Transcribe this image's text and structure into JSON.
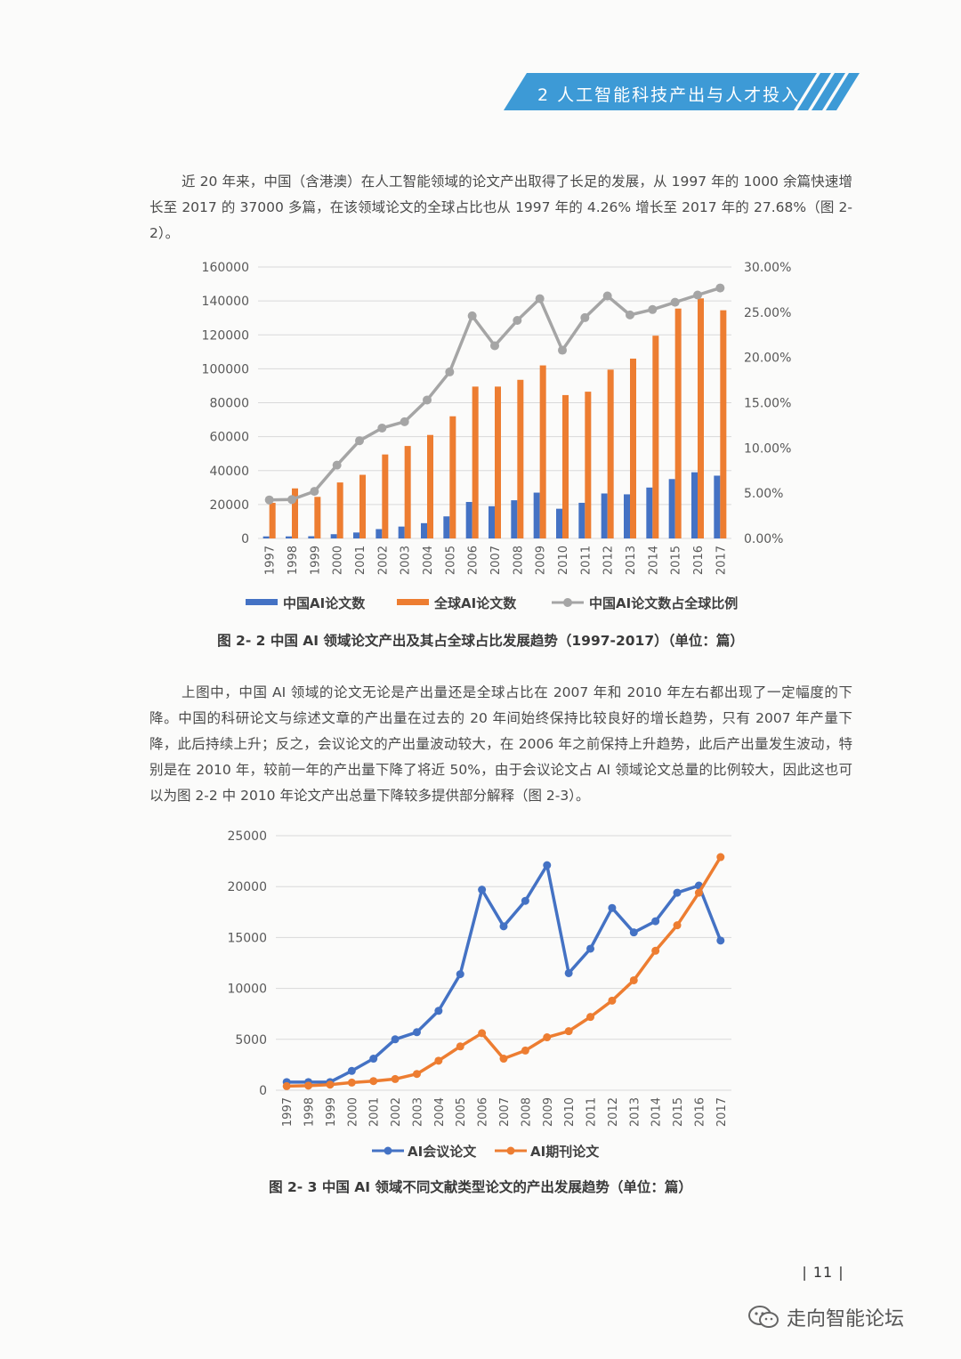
{
  "header": {
    "section_title": "2 人工智能科技产出与人才投入"
  },
  "paragraphs": {
    "p1": "近 20 年来，中国（含港澳）在人工智能领域的论文产出取得了长足的发展，从 1997 年的 1000 余篇快速增长至 2017 的 37000 多篇，在该领域论文的全球占比也从 1997 年的 4.26% 增长至 2017 年的 27.68%（图 2-2）。",
    "p2": "上图中，中国 AI 领域的论文无论是产出量还是全球占比在 2007 年和 2010 年左右都出现了一定幅度的下降。中国的科研论文与综述文章的产出量在过去的 20 年间始终保持比较良好的增长趋势，只有 2007 年产量下降，此后持续上升；反之，会议论文的产出量波动较大，在 2006 年之前保持上升趋势，此后产出量发生波动，特别是在 2010 年，较前一年的产出量下降了将近 50%，由于会议论文占 AI 领域论文总量的比例较大，因此这也可以为图 2-2 中 2010 年论文产出总量下降较多提供部分解释（图 2-3）。"
  },
  "captions": {
    "fig1": "图 2- 2  中国 AI 领域论文产出及其占全球占比发展趋势（1997-2017）（单位：篇）",
    "fig2": "图 2- 3  中国 AI 领域不同文献类型论文的产出发展趋势（单位：篇）"
  },
  "colors": {
    "banner": "#3d9ad6",
    "blue": "#4472c4",
    "orange": "#ed7d31",
    "gray": "#a5a5a5",
    "grid": "#d9d9d9"
  },
  "chart_data": [
    {
      "type": "bar",
      "categories": [
        "1997",
        "1998",
        "1999",
        "2000",
        "2001",
        "2002",
        "2003",
        "2004",
        "2005",
        "2006",
        "2007",
        "2008",
        "2009",
        "2010",
        "2011",
        "2012",
        "2013",
        "2014",
        "2015",
        "2016",
        "2017"
      ],
      "series": [
        {
          "name": "中国AI论文数",
          "kind": "bar",
          "axis": "left",
          "color": "#4472c4",
          "values": [
            1200,
            1200,
            1300,
            2500,
            3500,
            5500,
            7000,
            9000,
            13000,
            21500,
            19000,
            22500,
            27000,
            17500,
            21000,
            26500,
            26000,
            30000,
            35000,
            39000,
            37000
          ]
        },
        {
          "name": "全球AI论文数",
          "kind": "bar",
          "axis": "left",
          "color": "#ed7d31",
          "values": [
            21000,
            29500,
            24500,
            33000,
            37500,
            49500,
            54500,
            61000,
            72000,
            89500,
            89500,
            93500,
            102000,
            84500,
            86500,
            99500,
            106000,
            119500,
            135500,
            141500,
            134500
          ]
        },
        {
          "name": "中国AI论文数占全球比例",
          "kind": "line",
          "axis": "right",
          "color": "#a5a5a5",
          "values": [
            4.26,
            4.3,
            5.2,
            8.1,
            10.8,
            12.2,
            12.9,
            15.3,
            18.4,
            24.6,
            21.3,
            24.1,
            26.5,
            20.8,
            24.4,
            26.8,
            24.7,
            25.3,
            26.1,
            26.9,
            27.68
          ]
        }
      ],
      "y_left": {
        "ticks": [
          "0",
          "20000",
          "40000",
          "60000",
          "80000",
          "100000",
          "120000",
          "140000",
          "160000"
        ],
        "min": 0,
        "max": 160000
      },
      "y_right": {
        "ticks": [
          "0.00%",
          "5.00%",
          "10.00%",
          "15.00%",
          "20.00%",
          "25.00%",
          "30.00%"
        ],
        "min": 0,
        "max": 30
      },
      "grid": true,
      "legend": "bottom"
    },
    {
      "type": "line",
      "categories": [
        "1997",
        "1998",
        "1999",
        "2000",
        "2001",
        "2002",
        "2003",
        "2004",
        "2005",
        "2006",
        "2007",
        "2008",
        "2009",
        "2010",
        "2011",
        "2012",
        "2013",
        "2014",
        "2015",
        "2016",
        "2017"
      ],
      "series": [
        {
          "name": "AI会议论文",
          "color": "#4472c4",
          "values": [
            800,
            800,
            800,
            1900,
            3100,
            5000,
            5700,
            7800,
            11400,
            19700,
            16100,
            18600,
            22100,
            11500,
            13900,
            17900,
            15500,
            16600,
            19400,
            20100,
            14700
          ]
        },
        {
          "name": "AI期刊论文",
          "color": "#ed7d31",
          "values": [
            400,
            450,
            550,
            750,
            900,
            1100,
            1600,
            2900,
            4300,
            5600,
            3100,
            3900,
            5200,
            5800,
            7200,
            8800,
            10800,
            13700,
            16200,
            19400,
            22900
          ]
        }
      ],
      "y": {
        "ticks": [
          "0",
          "5000",
          "10000",
          "15000",
          "20000",
          "25000"
        ],
        "min": 0,
        "max": 25000
      },
      "grid": true,
      "legend": "bottom"
    }
  ],
  "footer": {
    "page_number": "| 11 |",
    "watermark": "走向智能论坛"
  }
}
